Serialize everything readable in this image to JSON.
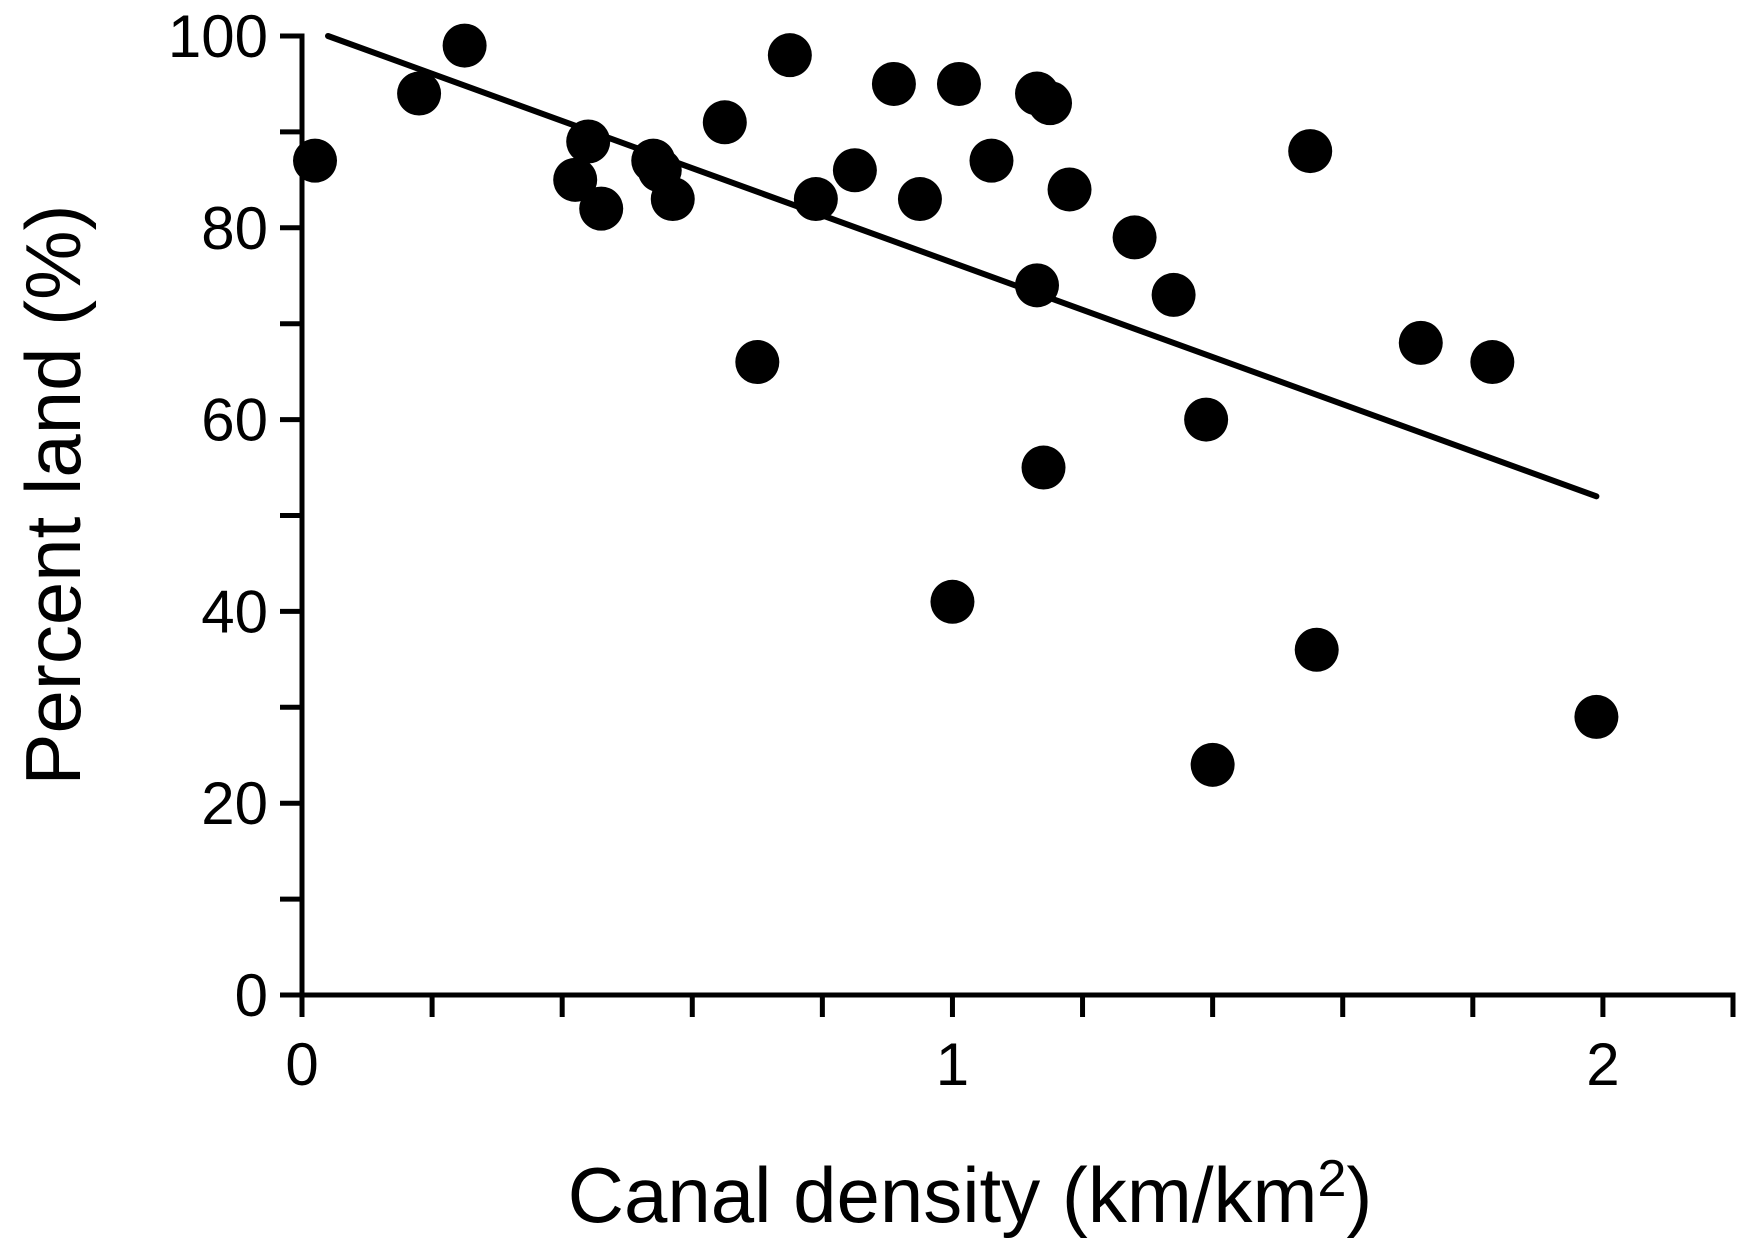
{
  "chart_data": {
    "type": "scatter",
    "title": "",
    "xlabel": "Canal density (km/km",
    "xlabel_sup": "2",
    "xlabel_end": ")",
    "ylabel": "Percent land (%)",
    "xlim": [
      0,
      2.2
    ],
    "ylim": [
      0,
      100
    ],
    "x_ticks": [
      0,
      0.2,
      0.4,
      0.6,
      0.8,
      1.0,
      1.2,
      1.4,
      1.6,
      1.8,
      2.0,
      2.2
    ],
    "x_tick_labels": [
      {
        "value": 0,
        "label": "0"
      },
      {
        "value": 1,
        "label": "1"
      },
      {
        "value": 2,
        "label": "2"
      }
    ],
    "y_ticks": [
      0,
      10,
      20,
      30,
      40,
      50,
      60,
      70,
      80,
      90,
      100
    ],
    "y_tick_labels": [
      {
        "value": 0,
        "label": "0"
      },
      {
        "value": 20,
        "label": "20"
      },
      {
        "value": 40,
        "label": "40"
      },
      {
        "value": 60,
        "label": "60"
      },
      {
        "value": 80,
        "label": "80"
      },
      {
        "value": 100,
        "label": "100"
      }
    ],
    "grid": false,
    "color": "#000000",
    "points": [
      {
        "x": 0.02,
        "y": 87
      },
      {
        "x": 0.18,
        "y": 94
      },
      {
        "x": 0.25,
        "y": 99
      },
      {
        "x": 0.42,
        "y": 85
      },
      {
        "x": 0.44,
        "y": 89
      },
      {
        "x": 0.46,
        "y": 82
      },
      {
        "x": 0.54,
        "y": 87
      },
      {
        "x": 0.55,
        "y": 86
      },
      {
        "x": 0.57,
        "y": 83
      },
      {
        "x": 0.65,
        "y": 91
      },
      {
        "x": 0.7,
        "y": 66
      },
      {
        "x": 0.75,
        "y": 98
      },
      {
        "x": 0.79,
        "y": 83
      },
      {
        "x": 0.85,
        "y": 86
      },
      {
        "x": 0.91,
        "y": 95
      },
      {
        "x": 0.95,
        "y": 83
      },
      {
        "x": 1.0,
        "y": 41
      },
      {
        "x": 1.01,
        "y": 95
      },
      {
        "x": 1.06,
        "y": 87
      },
      {
        "x": 1.13,
        "y": 94
      },
      {
        "x": 1.13,
        "y": 74
      },
      {
        "x": 1.14,
        "y": 55
      },
      {
        "x": 1.15,
        "y": 93
      },
      {
        "x": 1.18,
        "y": 84
      },
      {
        "x": 1.28,
        "y": 79
      },
      {
        "x": 1.34,
        "y": 73
      },
      {
        "x": 1.39,
        "y": 60
      },
      {
        "x": 1.4,
        "y": 24
      },
      {
        "x": 1.55,
        "y": 88
      },
      {
        "x": 1.56,
        "y": 36
      },
      {
        "x": 1.72,
        "y": 68
      },
      {
        "x": 1.83,
        "y": 66
      },
      {
        "x": 1.99,
        "y": 29
      }
    ],
    "trendline": {
      "x": [
        0.04,
        1.99
      ],
      "y": [
        100,
        52
      ]
    }
  }
}
